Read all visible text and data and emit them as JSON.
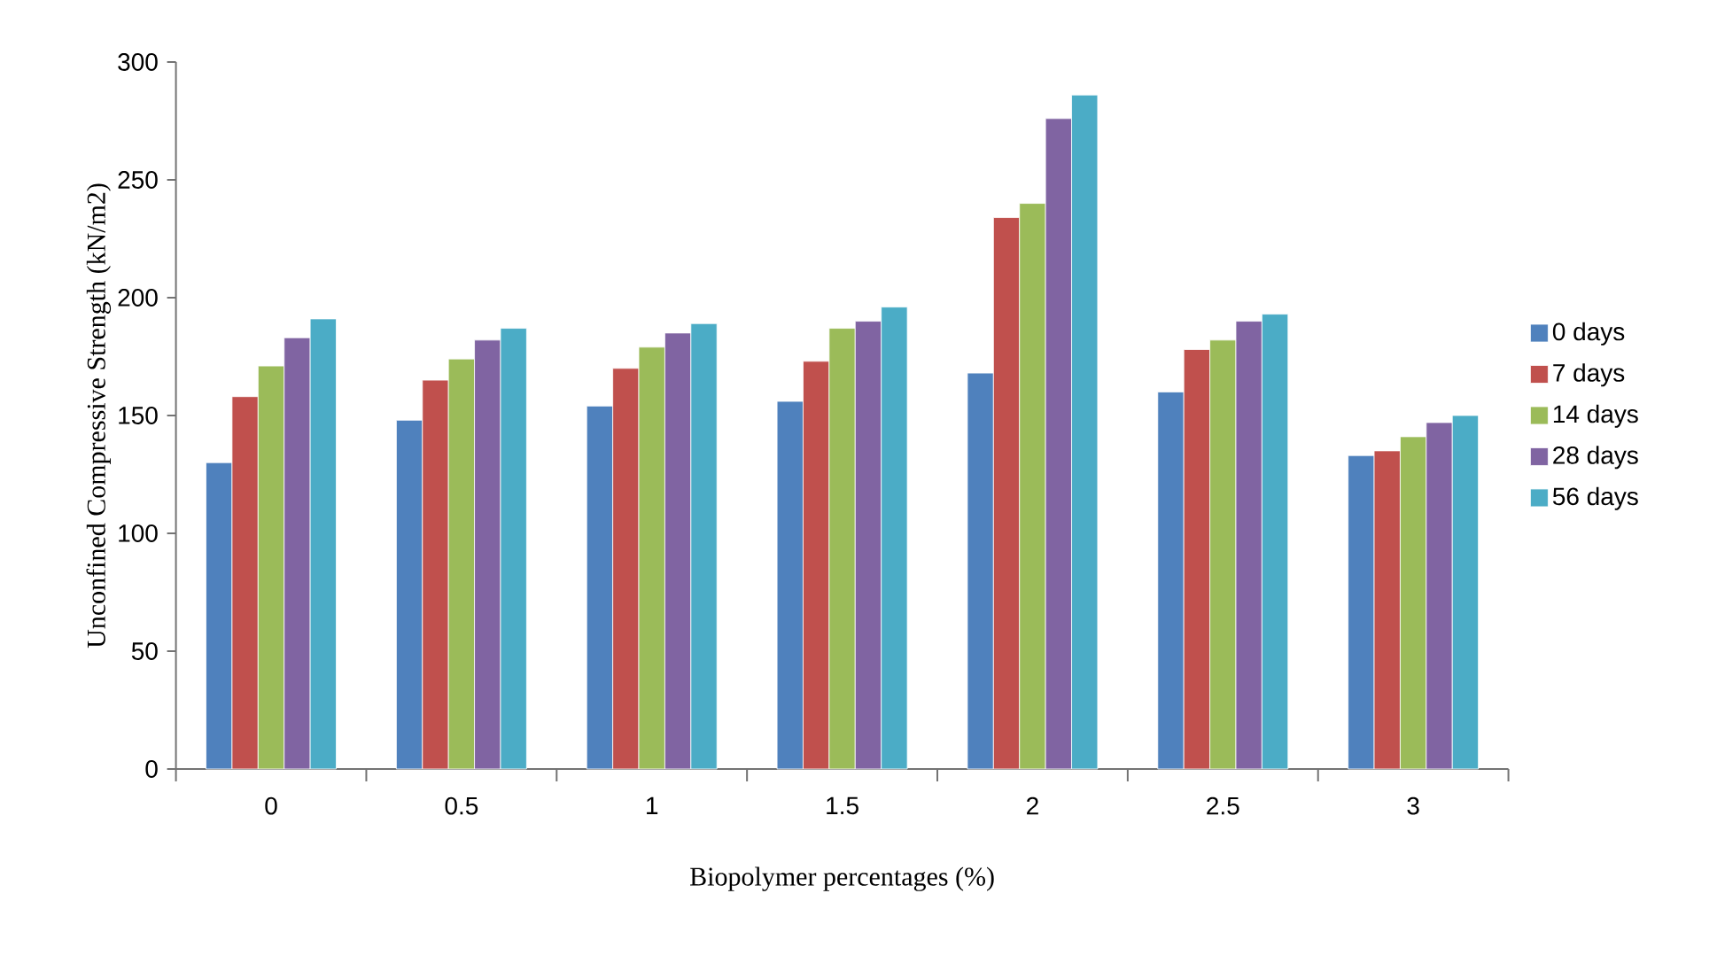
{
  "chart_data": {
    "type": "bar",
    "xlabel": "Biopolymer percentages (%)",
    "ylabel": "Unconfined Compressive Strength (kN/m2)",
    "categories": [
      "0",
      "0.5",
      "1",
      "1.5",
      "2",
      "2.5",
      "3"
    ],
    "series": [
      {
        "name": "0 days",
        "color": "#4f81bd",
        "values": [
          130,
          148,
          154,
          156,
          168,
          160,
          133
        ]
      },
      {
        "name": "7 days",
        "color": "#c0504d",
        "values": [
          158,
          165,
          170,
          173,
          234,
          178,
          135
        ]
      },
      {
        "name": "14 days",
        "color": "#9bbb59",
        "values": [
          171,
          174,
          179,
          187,
          240,
          182,
          141
        ]
      },
      {
        "name": "28 days",
        "color": "#8064a2",
        "values": [
          183,
          182,
          185,
          190,
          276,
          190,
          147
        ]
      },
      {
        "name": "56 days",
        "color": "#4bacc6",
        "values": [
          191,
          187,
          189,
          196,
          286,
          193,
          150
        ]
      }
    ],
    "ylim": [
      0,
      300
    ],
    "yticks": [
      0,
      50,
      100,
      150,
      200,
      250,
      300
    ],
    "grid": false,
    "legend": "right"
  }
}
